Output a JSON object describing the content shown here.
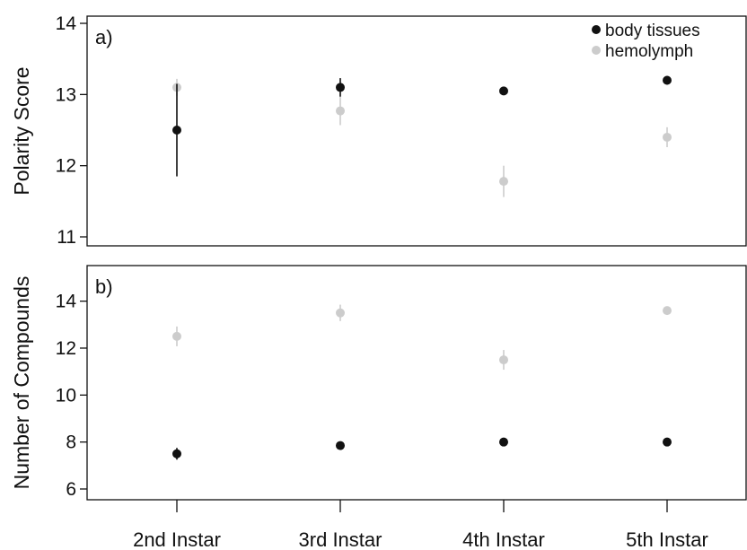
{
  "chart_data": [
    {
      "type": "scatter",
      "panel_label": "a)",
      "ylabel": "Polarity Score",
      "ylim": [
        11,
        14
      ],
      "yticks": [
        11,
        12,
        13,
        14
      ],
      "categories": [
        "2nd Instar",
        "3rd Instar",
        "4th Instar",
        "5th Instar"
      ],
      "legend_position": "top-right",
      "series": [
        {
          "name": "body tissues",
          "color": "#111111",
          "values": [
            12.5,
            13.1,
            13.05,
            13.2
          ],
          "error": [
            0.65,
            0.13,
            0.05,
            0.06
          ]
        },
        {
          "name": "hemolymph",
          "color": "#cccccc",
          "values": [
            13.1,
            12.77,
            11.78,
            12.4
          ],
          "error": [
            0.12,
            0.2,
            0.22,
            0.14
          ]
        }
      ]
    },
    {
      "type": "scatter",
      "panel_label": "b)",
      "ylabel": "Number of Compounds",
      "ylim": [
        5.8,
        15.2
      ],
      "yticks": [
        6,
        8,
        10,
        12,
        14
      ],
      "categories": [
        "2nd Instar",
        "3rd Instar",
        "4th Instar",
        "5th Instar"
      ],
      "series": [
        {
          "name": "body tissues",
          "color": "#111111",
          "values": [
            7.5,
            7.85,
            8.0,
            8.0
          ],
          "error": [
            0.25,
            0.1,
            0.1,
            0.1
          ]
        },
        {
          "name": "hemolymph",
          "color": "#cccccc",
          "values": [
            12.5,
            13.5,
            11.5,
            13.6
          ],
          "error": [
            0.42,
            0.35,
            0.42,
            0.1
          ]
        }
      ]
    }
  ]
}
